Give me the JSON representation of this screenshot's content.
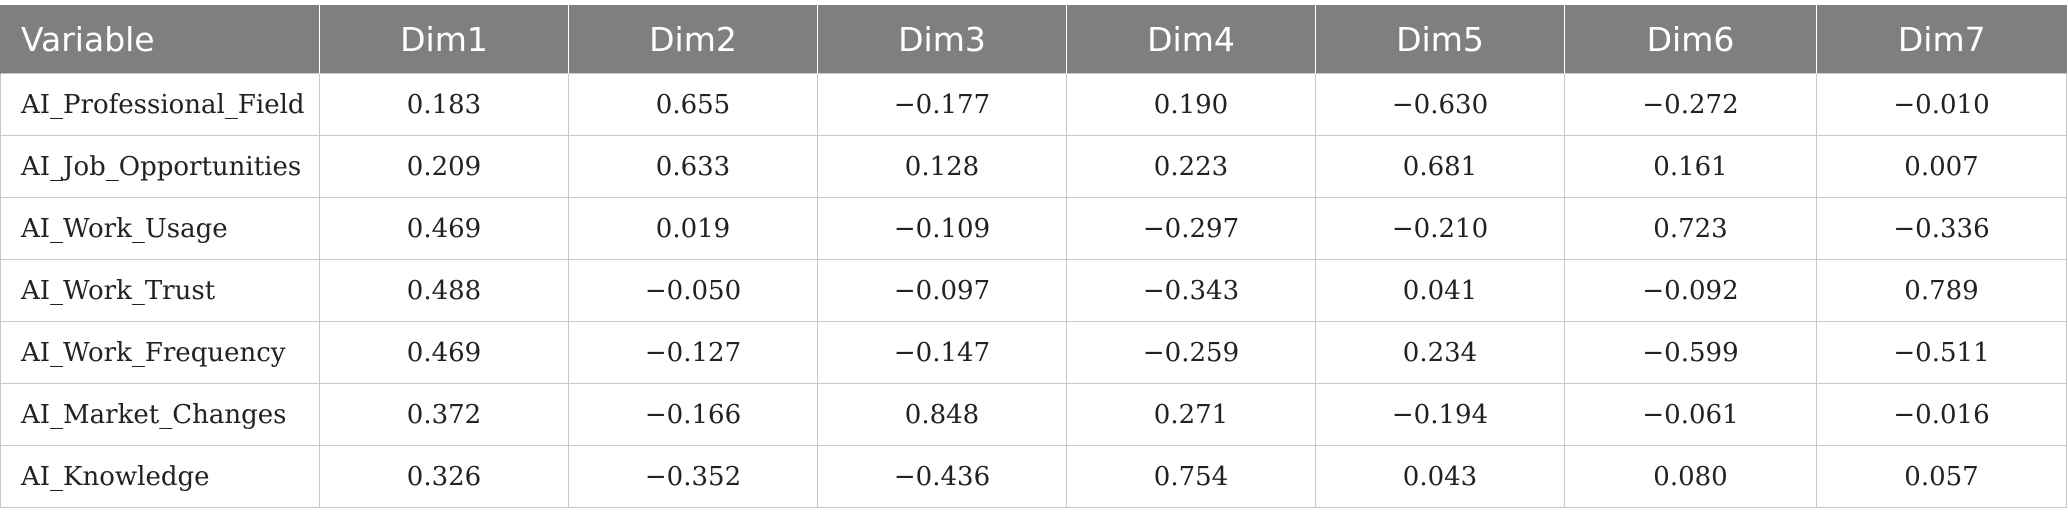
{
  "table": {
    "headers": [
      "Variable",
      "Dim1",
      "Dim2",
      "Dim3",
      "Dim4",
      "Dim5",
      "Dim6",
      "Dim7"
    ],
    "rows": [
      [
        "AI_Professional_Field",
        "0.183",
        "0.655",
        "−0.177",
        "0.190",
        "−0.630",
        "−0.272",
        "−0.010"
      ],
      [
        "AI_Job_Opportunities",
        "0.209",
        "0.633",
        "0.128",
        "0.223",
        "0.681",
        "0.161",
        "0.007"
      ],
      [
        "AI_Work_Usage",
        "0.469",
        "0.019",
        "−0.109",
        "−0.297",
        "−0.210",
        "0.723",
        "−0.336"
      ],
      [
        "AI_Work_Trust",
        "0.488",
        "−0.050",
        "−0.097",
        "−0.343",
        "0.041",
        "−0.092",
        "0.789"
      ],
      [
        "AI_Work_Frequency",
        "0.469",
        "−0.127",
        "−0.147",
        "−0.259",
        "0.234",
        "−0.599",
        "−0.511"
      ],
      [
        "AI_Market_Changes",
        "0.372",
        "−0.166",
        "0.848",
        "0.271",
        "−0.194",
        "−0.061",
        "−0.016"
      ],
      [
        "AI_Knowledge",
        "0.326",
        "−0.352",
        "−0.436",
        "0.754",
        "0.043",
        "0.080",
        "0.057"
      ]
    ]
  },
  "colors": {
    "header_background": "#7f807e",
    "header_text": "#ffffff",
    "grid_line": "#c8c8c8"
  }
}
